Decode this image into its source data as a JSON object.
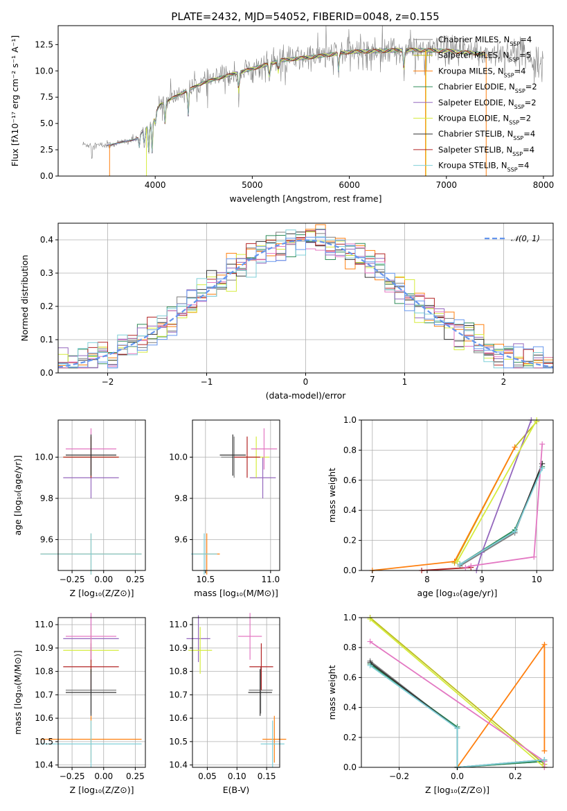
{
  "figure": {
    "title": "PLATE=2432, MJD=54052, FIBERID=0048, z=0.155"
  },
  "colors": {
    "c_MILES": "#7f7f7f",
    "s_MILES": "#bcbd22",
    "k_MILES": "#ff7f0e",
    "c_ELODIE": "#2e8b57",
    "s_ELODIE": "#9467bd",
    "k_ELODIE": "#d5ec3d",
    "c_STELIB": "#333333",
    "s_STELIB": "#b22222",
    "k_STELIB": "#7fcfd8",
    "pink": "#e377c2",
    "normal": "#6495ed"
  },
  "chart_data": [
    {
      "id": "spectrum",
      "type": "line",
      "title": "PLATE=2432, MJD=54052, FIBERID=0048, z=0.155",
      "xlabel": "wavelength [Angstrom, rest frame]",
      "ylabel": "Flux [fλ10⁻¹⁷ erg cm⁻² s⁻¹ A⁻¹]",
      "xlim": [
        3000,
        8100
      ],
      "ylim": [
        0,
        14.3
      ],
      "xticks": [
        "4000",
        "5000",
        "6000",
        "7000",
        "8000"
      ],
      "yticks": [
        "0.0",
        "2.5",
        "5.0",
        "7.5",
        "10.0",
        "12.5"
      ],
      "grid": false,
      "legend_position": "top-right",
      "series": [
        {
          "name": "Chabrier MILES, N_SSP=4",
          "color_key": "c_MILES"
        },
        {
          "name": "Salpeter MILES, N_SSP=5",
          "color_key": "s_MILES"
        },
        {
          "name": "Kroupa MILES, N_SSP=4",
          "color_key": "k_MILES"
        },
        {
          "name": "Chabrier ELODIE, N_SSP=2",
          "color_key": "c_ELODIE"
        },
        {
          "name": "Salpeter ELODIE, N_SSP=2",
          "color_key": "s_ELODIE"
        },
        {
          "name": "Kroupa ELODIE, N_SSP=2",
          "color_key": "k_ELODIE"
        },
        {
          "name": "Chabrier STELIB, N_SSP=4",
          "color_key": "c_STELIB"
        },
        {
          "name": "Salpeter STELIB, N_SSP=4",
          "color_key": "s_STELIB"
        },
        {
          "name": "Kroupa STELIB, N_SSP=4",
          "color_key": "k_STELIB"
        }
      ],
      "continuum": {
        "x": [
          3250,
          3500,
          3800,
          3950,
          4050,
          4300,
          4500,
          4800,
          5000,
          5300,
          5600,
          6000,
          6300,
          6600,
          7000,
          7400,
          7800,
          8000
        ],
        "y": [
          3.0,
          2.9,
          3.5,
          5.0,
          6.8,
          8.0,
          8.9,
          9.7,
          10.2,
          11.0,
          11.3,
          11.8,
          11.9,
          12.0,
          11.9,
          11.6,
          11.8,
          10.5
        ]
      }
    },
    {
      "id": "residuals",
      "type": "line",
      "xlabel": "(data-model)/error",
      "ylabel": "Normed distribution",
      "xlim": [
        -2.5,
        2.5
      ],
      "ylim": [
        0,
        0.45
      ],
      "xticks": [
        "−2",
        "−1",
        "0",
        "1",
        "2"
      ],
      "yticks": [
        "0.0",
        "0.1",
        "0.2",
        "0.3",
        "0.4"
      ],
      "grid": true,
      "legend_position": "top-right",
      "legend": "𝒩(0, 1)",
      "bin_width": 0.1,
      "normal": {
        "mean": 0,
        "sigma": 1
      }
    },
    {
      "id": "age_vs_Z",
      "type": "scatter",
      "xlabel": "Z [log₁₀(Z/Z⊙)]",
      "ylabel": "age  [log₁₀(age/yr)]",
      "xlim": [
        -0.36,
        0.33
      ],
      "ylim": [
        9.45,
        10.18
      ],
      "xticks": [
        "−0.25",
        "0.00",
        "0.25"
      ],
      "yticks": [
        "9.6",
        "9.8",
        "10.0"
      ],
      "grid": true
    },
    {
      "id": "age_vs_mass",
      "type": "scatter",
      "xlabel": "mass [log₁₀(M/M⊙)]",
      "xlim": [
        10.4,
        11.07
      ],
      "ylim": [
        9.45,
        10.18
      ],
      "xticks": [
        "10.5",
        "11.0"
      ],
      "yticks": [
        "9.6",
        "9.8",
        "10.0"
      ],
      "grid": true
    },
    {
      "id": "weight_vs_age",
      "type": "line",
      "xlabel": "age  [log₁₀(age/yr)]",
      "ylabel": "mass weight",
      "xlim": [
        6.8,
        10.3
      ],
      "ylim": [
        0,
        1
      ],
      "xticks": [
        "7",
        "8",
        "9",
        "10"
      ],
      "yticks": [
        "0.0",
        "0.2",
        "0.4",
        "0.6",
        "0.8",
        "1.0"
      ],
      "grid": true,
      "series": [
        {
          "color_key": "c_MILES",
          "x": [
            8.6,
            9.6,
            10.1
          ],
          "y": [
            0.03,
            0.25,
            0.71
          ]
        },
        {
          "color_key": "s_MILES",
          "x": [
            8.5,
            9.6,
            10.0
          ],
          "y": [
            0.05,
            0.82,
            0.99
          ]
        },
        {
          "color_key": "k_MILES",
          "x": [
            7.0,
            8.5,
            9.6
          ],
          "y": [
            0.0,
            0.06,
            0.82
          ]
        },
        {
          "color_key": "c_ELODIE",
          "x": [
            8.6,
            9.6,
            10.1
          ],
          "y": [
            0.04,
            0.27,
            0.69
          ]
        },
        {
          "color_key": "s_ELODIE",
          "x": [
            8.9,
            9.0,
            9.9
          ],
          "y": [
            0.0,
            0.12,
            1.0
          ]
        },
        {
          "color_key": "k_ELODIE",
          "x": [
            8.55,
            10.0
          ],
          "y": [
            0.06,
            1.0
          ]
        },
        {
          "color_key": "c_STELIB",
          "x": [
            8.6,
            9.6,
            10.1
          ],
          "y": [
            0.04,
            0.26,
            0.71
          ]
        },
        {
          "color_key": "s_STELIB",
          "x": [
            7.9,
            8.8
          ],
          "y": [
            0.0,
            0.02
          ]
        },
        {
          "color_key": "pink",
          "x": [
            8.7,
            8.8,
            9.95,
            10.1
          ],
          "y": [
            0.02,
            0.03,
            0.09,
            0.84
          ]
        },
        {
          "color_key": "k_STELIB",
          "x": [
            8.6,
            9.6,
            10.1
          ],
          "y": [
            0.04,
            0.26,
            0.68
          ]
        }
      ]
    },
    {
      "id": "mass_vs_Z",
      "type": "scatter",
      "xlabel": "Z [log₁₀(Z/Z⊙)]",
      "ylabel": "mass [log₁₀(M/M⊙)]",
      "xlim": [
        -0.36,
        0.33
      ],
      "ylim": [
        10.39,
        11.03
      ],
      "xticks": [
        "−0.25",
        "0.00",
        "0.25"
      ],
      "yticks": [
        "10.4",
        "10.5",
        "10.6",
        "10.7",
        "10.8",
        "10.9",
        "11.0"
      ],
      "grid": true
    },
    {
      "id": "mass_vs_EBV",
      "type": "scatter",
      "xlabel": "E(B-V)",
      "xlim": [
        0.025,
        0.172
      ],
      "ylim": [
        10.39,
        11.03
      ],
      "xticks": [
        "0.05",
        "0.10",
        "0.15"
      ],
      "yticks": [
        "10.4",
        "10.5",
        "10.6",
        "10.7",
        "10.8",
        "10.9",
        "11.0"
      ],
      "grid": true
    },
    {
      "id": "weight_vs_Z",
      "type": "line",
      "xlabel": "Z [log₁₀(Z/Z⊙)]",
      "ylabel": "mass weight",
      "xlim": [
        -0.33,
        0.33
      ],
      "ylim": [
        0,
        1
      ],
      "xticks": [
        "−0.2",
        "0.0",
        "0.2"
      ],
      "yticks": [
        "0.0",
        "0.2",
        "0.4",
        "0.6",
        "0.8",
        "1.0"
      ],
      "grid": true,
      "series": [
        {
          "color_key": "c_MILES",
          "x": [
            -0.3,
            0.0,
            0.0,
            0.3
          ],
          "y": [
            0.71,
            0.26,
            0.0,
            0.04
          ]
        },
        {
          "color_key": "s_MILES",
          "x": [
            -0.3,
            0.3,
            0.3
          ],
          "y": [
            1.0,
            0.02,
            0.0
          ]
        },
        {
          "color_key": "k_MILES",
          "x": [
            0.0,
            0.3,
            0.3
          ],
          "y": [
            0.0,
            0.82,
            0.11
          ]
        },
        {
          "color_key": "c_ELODIE",
          "x": [
            -0.3,
            0.0,
            0.0,
            0.3
          ],
          "y": [
            0.69,
            0.27,
            0.0,
            0.04
          ]
        },
        {
          "color_key": "k_ELODIE",
          "x": [
            -0.3,
            0.3
          ],
          "y": [
            0.99,
            0.0
          ]
        },
        {
          "color_key": "c_STELIB",
          "x": [
            -0.3,
            0.0,
            0.0,
            0.3
          ],
          "y": [
            0.7,
            0.26,
            0.0,
            0.05
          ]
        },
        {
          "color_key": "pink",
          "x": [
            -0.3,
            0.3,
            0.3
          ],
          "y": [
            0.84,
            0.04,
            0.0
          ]
        },
        {
          "color_key": "k_STELIB",
          "x": [
            -0.3,
            0.0,
            0.0,
            0.3
          ],
          "y": [
            0.68,
            0.26,
            0.0,
            0.05
          ]
        }
      ]
    }
  ],
  "ssp_points": [
    {
      "color_key": "c_MILES",
      "age": [
        10.0,
        0.1
      ],
      "Z": [
        -0.1,
        0.2
      ],
      "mass": [
        10.72,
        0.1
      ],
      "ebv": [
        0.14,
        0.02
      ]
    },
    {
      "color_key": "k_MILES",
      "age": [
        9.53,
        0.1
      ],
      "Z": [
        -0.1,
        0.4
      ],
      "mass": [
        10.51,
        0.1
      ],
      "ebv": [
        0.163,
        0.02
      ]
    },
    {
      "color_key": "s_ELODIE",
      "age": [
        9.9,
        0.1
      ],
      "Z": [
        -0.1,
        0.22
      ],
      "mass": [
        10.94,
        0.1
      ],
      "ebv": [
        0.035,
        0.02
      ]
    },
    {
      "color_key": "k_ELODIE",
      "age": [
        10.0,
        0.1
      ],
      "Z": [
        -0.1,
        0.22
      ],
      "mass": [
        10.89,
        0.1
      ],
      "ebv": [
        0.038,
        0.02
      ]
    },
    {
      "color_key": "s_STELIB",
      "age": [
        10.0,
        0.1
      ],
      "Z": [
        -0.1,
        0.22
      ],
      "mass": [
        10.82,
        0.1
      ],
      "ebv": [
        0.141,
        0.02
      ]
    },
    {
      "color_key": "pink",
      "age": [
        10.04,
        0.1
      ],
      "Z": [
        -0.1,
        0.2
      ],
      "mass": [
        10.95,
        0.1
      ],
      "ebv": [
        0.122,
        0.02
      ]
    },
    {
      "color_key": "k_STELIB",
      "age": [
        9.53,
        0.1
      ],
      "Z": [
        -0.1,
        0.4
      ],
      "mass": [
        10.49,
        0.1
      ],
      "ebv": [
        0.16,
        0.02
      ]
    },
    {
      "color_key": "c_STELIB",
      "age": [
        10.01,
        0.1
      ],
      "Z": [
        -0.1,
        0.2
      ],
      "mass": [
        10.71,
        0.1
      ],
      "ebv": [
        0.139,
        0.02
      ]
    }
  ]
}
